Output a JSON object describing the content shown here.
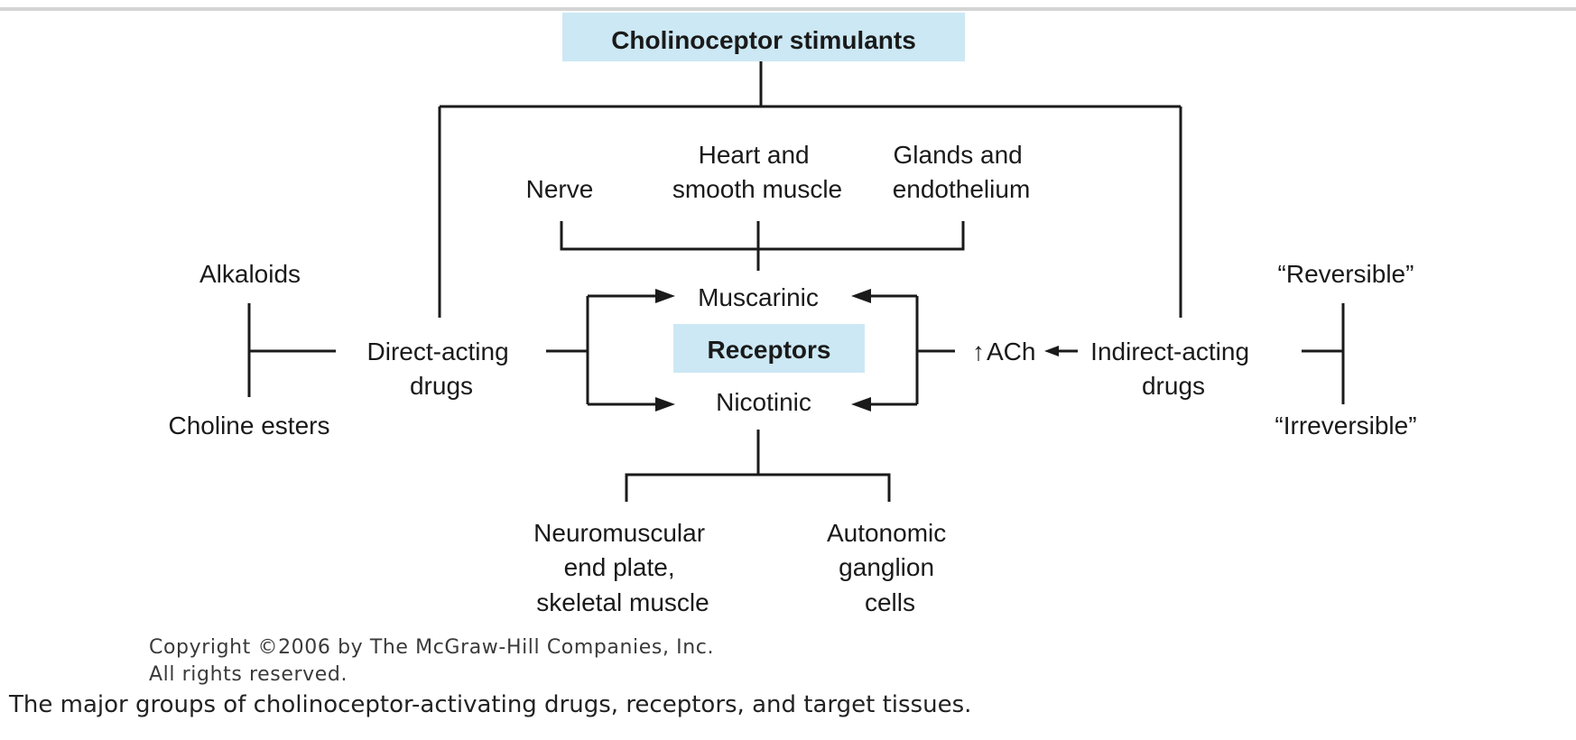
{
  "diagram": {
    "root": "Cholinoceptor stimulants",
    "direct": [
      "Direct-acting",
      "drugs"
    ],
    "indirect": [
      "Indirect-acting",
      "drugs"
    ],
    "alkaloids": "Alkaloids",
    "choline_esters": "Choline esters",
    "reversible": "“Reversible”",
    "irreversible": "“Irreversible”",
    "ach": "ACh",
    "up_arrow": "↑",
    "receptors": "Receptors",
    "muscarinic": "Muscarinic",
    "nicotinic": "Nicotinic",
    "nerve": "Nerve",
    "heart": [
      "Heart and",
      "smooth muscle"
    ],
    "glands": [
      "Glands and",
      "endothelium"
    ],
    "neuromuscular": [
      "Neuromuscular",
      "end plate,",
      "skeletal muscle"
    ],
    "autonomic": [
      "Autonomic",
      "ganglion",
      "cells"
    ]
  },
  "copyright": [
    "Copyright ©2006 by The McGraw-Hill Companies, Inc.",
    "All rights reserved."
  ],
  "caption": "The major groups of cholinoceptor-activating drugs, receptors, and target tissues.",
  "colors": {
    "highlight": "#cce8f4",
    "ink": "#1a1a1a"
  }
}
